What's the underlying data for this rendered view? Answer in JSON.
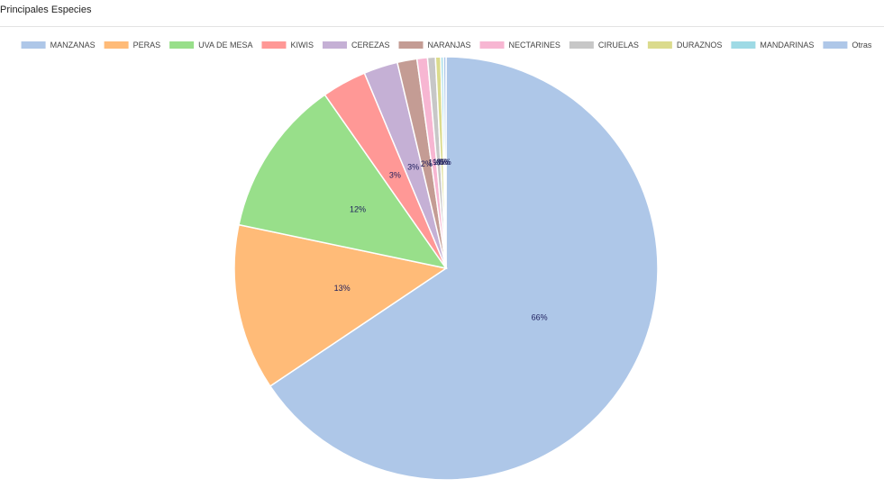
{
  "chart_data": {
    "type": "pie",
    "title": "Principales Especies",
    "categories": [
      "MANZANAS",
      "PERAS",
      "UVA DE MESA",
      "KIWIS",
      "CEREZAS",
      "NARANJAS",
      "NECTARINES",
      "CIRUELAS",
      "DURAZNOS",
      "MANDARINAS",
      "Otras"
    ],
    "values": [
      65.6,
      12.7,
      12.0,
      3.4,
      2.6,
      1.5,
      0.8,
      0.6,
      0.4,
      0.2,
      0.2
    ],
    "value_labels": [
      "66%",
      "13%",
      "12%",
      "3%",
      "3%",
      "2%",
      "1%",
      "1%",
      "0%",
      "0%",
      "0%"
    ],
    "colors": [
      "#aec7e8",
      "#ffbb78",
      "#98df8a",
      "#ff9896",
      "#c5b0d5",
      "#c49c94",
      "#f7b6d2",
      "#c7c7c7",
      "#dbdb8d",
      "#9edae5",
      "#aec7e8"
    ],
    "legend": "top"
  }
}
